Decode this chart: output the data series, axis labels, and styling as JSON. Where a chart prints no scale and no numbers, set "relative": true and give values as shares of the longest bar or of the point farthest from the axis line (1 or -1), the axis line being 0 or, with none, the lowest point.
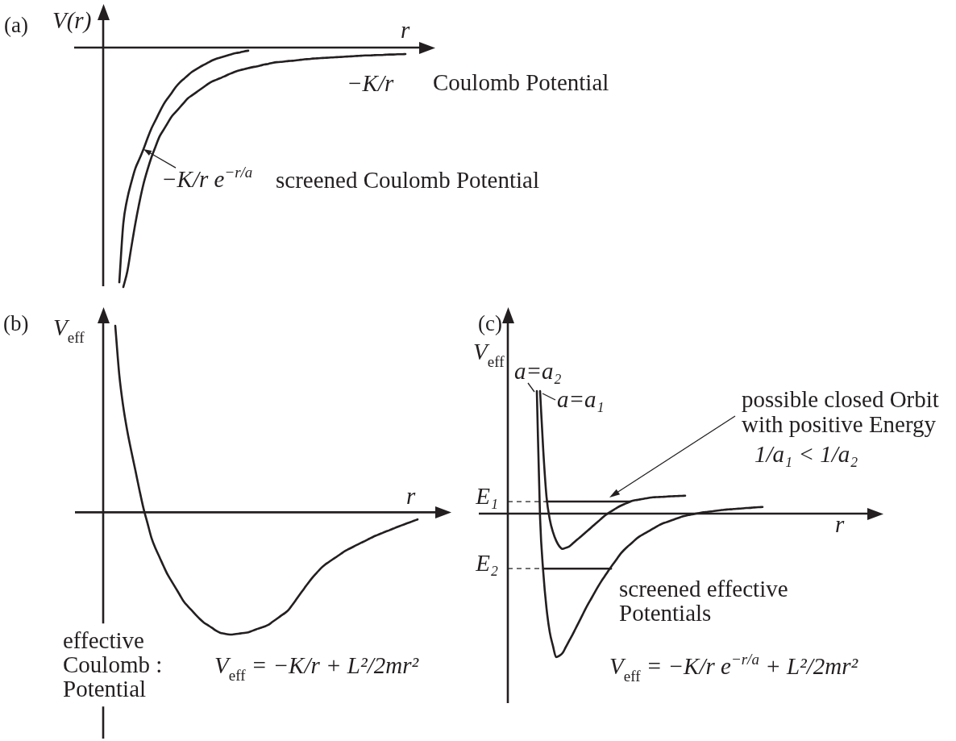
{
  "chart_data": [
    {
      "type": "line",
      "title": "(a)",
      "ylabel": "V(r)",
      "xlabel": "r",
      "relative": true,
      "categories": [
        null,
        null,
        null,
        null,
        null,
        null,
        null,
        null,
        null,
        null,
        null,
        null,
        null,
        null,
        null,
        null,
        null,
        null,
        null,
        null,
        null,
        null,
        null,
        null,
        null,
        null,
        null,
        null,
        null,
        null,
        null,
        null,
        null,
        null,
        null,
        null,
        null,
        null,
        null,
        null,
        null,
        null,
        null,
        null,
        null,
        null,
        null,
        null,
        null,
        null,
        null,
        null,
        null,
        null,
        null,
        null,
        null,
        null,
        null,
        null,
        null,
        null,
        null,
        null,
        null,
        null,
        null,
        null,
        null,
        null,
        null,
        null,
        null,
        null,
        null,
        null,
        null,
        null,
        null,
        null,
        null,
        null,
        null
      ],
      "series": [
        {
          "name": "−K/r e$^{−r/a}$",
          "color": "#231f20",
          "values": [
            null,
            null,
            null,
            null,
            -0.98,
            -0.734,
            -0.63,
            -0.562,
            -0.504,
            -0.465,
            -0.424,
            -0.379,
            -0.337,
            -0.303,
            -0.269,
            -0.237,
            -0.212,
            -0.189,
            -0.165,
            -0.146,
            -0.131,
            -0.116,
            -0.102,
            -0.091,
            -0.081,
            -0.072,
            -0.063,
            -0.054,
            -0.047,
            -0.042,
            -0.037,
            -0.032,
            -0.027,
            -0.023,
            -0.02,
            -0.016,
            -0.013,
            null,
            null,
            null,
            null,
            null,
            null,
            null,
            null,
            null,
            null,
            null,
            null,
            null,
            null,
            null,
            null,
            null,
            null,
            null,
            null,
            null,
            null,
            null,
            null,
            null,
            null,
            null,
            null,
            null,
            null,
            null,
            null,
            null,
            null,
            null,
            null,
            null,
            null,
            null,
            null,
            null,
            null,
            null,
            null,
            null,
            null
          ]
        },
        {
          "name": "−K/r",
          "color": "#231f20",
          "values": [
            null,
            null,
            null,
            null,
            null,
            -1,
            -0.934,
            -0.832,
            -0.733,
            -0.646,
            -0.57,
            -0.51,
            -0.457,
            -0.413,
            -0.371,
            -0.343,
            -0.315,
            -0.288,
            -0.269,
            -0.25,
            -0.231,
            -0.212,
            -0.2,
            -0.188,
            -0.176,
            -0.164,
            -0.152,
            -0.142,
            -0.135,
            -0.128,
            -0.121,
            -0.113,
            -0.106,
            -0.099,
            -0.094,
            -0.09,
            -0.086,
            -0.082,
            -0.079,
            -0.075,
            -0.071,
            -0.068,
            -0.064,
            -0.061,
            -0.06,
            -0.058,
            -0.056,
            -0.055,
            -0.053,
            -0.051,
            -0.049,
            -0.048,
            -0.046,
            -0.045,
            -0.044,
            -0.043,
            -0.042,
            -0.041,
            -0.04,
            -0.039,
            -0.038,
            -0.037,
            -0.036,
            -0.035,
            -0.034,
            -0.033,
            -0.033,
            -0.032,
            -0.031,
            -0.031,
            -0.03,
            -0.029,
            -0.029,
            -0.028,
            -0.028,
            -0.027,
            null,
            null,
            null,
            null,
            null,
            null,
            null
          ]
        }
      ],
      "annotations": [
        "screened Coulomb Potential",
        "Coulomb Potential"
      ]
    },
    {
      "type": "line",
      "title": "(b)",
      "ylabel": "V$_{eff}$",
      "xlabel": "r",
      "relative": true,
      "categories": [
        null,
        null,
        null,
        null,
        null,
        null,
        null,
        null,
        null,
        null,
        null,
        null,
        null,
        null,
        null,
        null,
        null,
        null,
        null,
        null,
        null,
        null,
        null,
        null,
        null,
        null,
        null,
        null,
        null,
        null,
        null,
        null,
        null,
        null,
        null,
        null,
        null,
        null,
        null,
        null,
        null,
        null,
        null,
        null,
        null,
        null,
        null,
        null,
        null,
        null,
        null,
        null,
        null,
        null,
        null,
        null,
        null,
        null,
        null,
        null,
        null,
        null,
        null,
        null,
        null,
        null,
        null,
        null,
        null,
        null,
        null,
        null,
        null,
        null,
        null,
        null,
        null,
        null,
        null
      ],
      "series": [
        {
          "color": "#231f20",
          "values": [
            null,
            null,
            null,
            1,
            0.736,
            0.564,
            0.434,
            0.326,
            0.224,
            0.12,
            0.022,
            -0.058,
            -0.138,
            -0.194,
            -0.241,
            -0.289,
            -0.334,
            -0.37,
            -0.406,
            -0.442,
            -0.478,
            -0.503,
            -0.526,
            -0.55,
            -0.572,
            -0.591,
            -0.605,
            -0.619,
            -0.634,
            -0.645,
            -0.65,
            -0.654,
            -0.655,
            -0.652,
            -0.649,
            -0.646,
            -0.643,
            -0.635,
            -0.627,
            -0.619,
            -0.612,
            -0.603,
            -0.587,
            -0.572,
            -0.556,
            -0.541,
            -0.523,
            -0.494,
            -0.464,
            -0.434,
            -0.404,
            -0.375,
            -0.348,
            -0.324,
            -0.3,
            -0.281,
            -0.266,
            -0.251,
            -0.237,
            -0.222,
            -0.207,
            -0.196,
            -0.185,
            -0.174,
            -0.163,
            -0.153,
            -0.142,
            -0.131,
            -0.122,
            -0.113,
            -0.104,
            -0.096,
            -0.087,
            -0.078,
            -0.07,
            -0.062,
            -0.054,
            -0.046,
            -0.038
          ]
        }
      ],
      "annotations": [
        "effective\nCoulomb :\nPotential",
        "V$_{eff}$ = −K/r + L²/2mr²"
      ]
    },
    {
      "type": "line",
      "title": "(c)",
      "ylabel": "V$_{eff}$",
      "xlabel": "r",
      "relative": true,
      "categories": [
        null,
        null,
        null,
        null,
        null,
        null,
        null,
        null,
        null,
        null,
        null,
        null,
        null,
        null,
        null,
        null,
        null,
        null,
        null,
        null,
        null,
        null,
        null,
        null,
        null,
        null,
        null,
        null,
        null,
        null,
        null,
        null,
        null,
        null,
        null,
        null,
        null,
        null,
        null,
        null,
        null,
        null,
        null,
        null,
        null,
        null,
        null,
        null,
        null,
        null,
        null,
        null,
        null,
        null,
        null,
        null,
        null,
        null,
        null,
        null,
        null,
        null,
        null,
        null,
        null,
        null,
        null,
        null,
        null,
        null,
        null,
        null,
        null,
        null,
        null,
        null,
        null,
        null,
        null,
        null,
        null,
        null,
        null,
        null,
        null,
        null,
        null,
        null,
        null,
        null,
        null,
        null,
        null,
        null,
        null,
        null,
        null,
        null,
        null,
        null,
        null,
        null,
        null,
        null,
        null,
        null,
        null,
        null,
        null,
        null,
        null,
        null,
        null,
        null,
        null,
        null,
        null
      ],
      "series": [
        {
          "name": "a=a₂",
          "color": "#231f20",
          "values": [
            null,
            null,
            null,
            null,
            null,
            null,
            null,
            null,
            null,
            0.854,
            -0.028,
            -0.41,
            -0.66,
            -0.825,
            -0.922,
            -1,
            -0.99,
            -0.971,
            -0.929,
            -0.887,
            -0.846,
            -0.802,
            -0.758,
            -0.713,
            -0.668,
            -0.626,
            -0.587,
            -0.547,
            -0.508,
            -0.471,
            -0.438,
            -0.404,
            -0.372,
            -0.341,
            -0.31,
            -0.279,
            -0.254,
            -0.233,
            -0.213,
            -0.193,
            -0.173,
            -0.157,
            -0.144,
            -0.131,
            -0.118,
            -0.105,
            -0.092,
            -0.079,
            -0.069,
            -0.061,
            -0.053,
            -0.045,
            -0.037,
            -0.029,
            -0.021,
            -0.015,
            -0.01,
            -0.006,
            -0.001,
            0.003,
            0.007,
            0.01,
            0.013,
            0.015,
            0.018,
            0.021,
            0.024,
            0.027,
            0.029,
            0.03,
            0.032,
            0.034,
            0.035,
            0.037,
            0.039,
            0.04,
            0.042,
            0.044,
            0.045,
            0.046,
            null,
            null,
            null,
            null,
            null,
            null,
            null,
            null,
            null,
            null,
            null,
            null,
            null,
            null,
            null,
            null,
            null,
            null,
            null,
            null,
            null,
            null,
            null,
            null,
            null,
            null,
            null,
            null,
            null,
            null,
            null,
            null,
            null,
            null,
            null,
            null,
            null
          ]
        },
        {
          "name": "a=a₁",
          "color": "#231f20",
          "values": [
            null,
            null,
            null,
            null,
            null,
            null,
            null,
            null,
            null,
            null,
            0.854,
            0.437,
            0.118,
            -0.039,
            -0.129,
            -0.189,
            -0.228,
            -0.246,
            -0.238,
            -0.23,
            -0.211,
            -0.191,
            -0.172,
            -0.153,
            -0.133,
            -0.114,
            -0.094,
            -0.074,
            -0.055,
            -0.035,
            -0.015,
            0.001,
            0.015,
            0.029,
            0.043,
            0.055,
            0.065,
            0.074,
            0.084,
            0.091,
            0.095,
            0.099,
            0.103,
            0.107,
            0.111,
            0.114,
            0.115,
            0.116,
            0.117,
            0.118,
            0.12,
            0.121,
            0.122,
            0.123,
            0.124,
            0.125,
            null,
            null,
            null,
            null,
            null,
            null,
            null,
            null,
            null,
            null,
            null,
            null,
            null,
            null,
            null,
            null,
            null,
            null,
            null,
            null,
            null,
            null,
            null,
            null,
            null,
            null,
            null,
            null,
            null,
            null,
            null,
            null,
            null,
            null,
            null,
            null,
            null,
            null,
            null,
            null,
            null,
            null,
            null,
            null,
            null,
            null,
            null,
            null,
            null,
            null,
            null,
            null,
            null,
            null,
            null,
            null,
            null,
            null,
            null,
            null,
            null
          ]
        },
        {
          "name": "E₁",
          "color": "#231f20",
          "line_style": "dashed",
          "values": [
            0.084,
            0.084,
            0.084,
            0.084,
            0.084,
            0.084,
            0.084,
            0.084,
            0.084,
            0.084,
            0.084,
            0.084,
            0.084,
            null,
            null,
            null,
            null,
            null,
            null,
            null,
            null,
            null,
            null,
            null,
            null,
            null,
            null,
            null,
            null,
            null,
            null,
            null,
            null,
            null,
            null,
            null,
            null,
            null,
            null,
            null,
            null,
            null,
            null,
            null,
            null,
            null,
            null,
            null,
            null,
            null,
            null,
            null,
            null,
            null,
            null,
            null,
            null,
            null,
            null,
            null,
            null,
            null,
            null,
            null,
            null,
            null,
            null,
            null,
            null,
            null,
            null,
            null,
            null,
            null,
            null,
            null,
            null,
            null,
            null,
            null,
            null,
            null,
            null,
            null,
            null,
            null,
            null,
            null,
            null,
            null,
            null,
            null,
            null,
            null,
            null,
            null,
            null,
            null,
            null,
            null,
            null,
            null,
            null,
            null,
            null,
            null,
            null,
            null,
            null,
            null,
            null,
            null,
            null,
            null,
            null,
            null,
            null
          ]
        },
        {
          "color": "#231f20",
          "values": [
            null,
            null,
            null,
            null,
            null,
            null,
            null,
            null,
            null,
            null,
            null,
            null,
            0.084,
            0.084,
            0.084,
            0.084,
            0.084,
            0.084,
            0.084,
            0.084,
            0.084,
            0.084,
            0.084,
            0.084,
            0.084,
            0.084,
            0.084,
            0.084,
            0.084,
            0.084,
            0.084,
            0.084,
            0.084,
            0.084,
            0.084,
            0.084,
            0.084,
            0.084,
            0.084,
            null,
            null,
            null,
            null,
            null,
            null,
            null,
            null,
            null,
            null,
            null,
            null,
            null,
            null,
            null,
            null,
            null,
            null,
            null,
            null,
            null,
            null,
            null,
            null,
            null,
            null,
            null,
            null,
            null,
            null,
            null,
            null,
            null,
            null,
            null,
            null,
            null,
            null,
            null,
            null,
            null,
            null,
            null,
            null,
            null,
            null,
            null,
            null,
            null,
            null,
            null,
            null,
            null,
            null,
            null,
            null,
            null,
            null,
            null,
            null,
            null,
            null,
            null,
            null,
            null,
            null,
            null,
            null,
            null,
            null,
            null,
            null,
            null,
            null,
            null,
            null,
            null,
            null
          ]
        },
        {
          "name": "E₂",
          "color": "#231f20",
          "line_style": "dashed",
          "values": [
            -0.383,
            -0.383,
            -0.383,
            -0.383,
            -0.383,
            -0.383,
            -0.383,
            -0.383,
            -0.383,
            -0.383,
            -0.383,
            -0.383,
            null,
            null,
            null,
            null,
            null,
            null,
            null,
            null,
            null,
            null,
            null,
            null,
            null,
            null,
            null,
            null,
            null,
            null,
            null,
            null,
            null,
            null,
            null,
            null,
            null,
            null,
            null,
            null,
            null,
            null,
            null,
            null,
            null,
            null,
            null,
            null,
            null,
            null,
            null,
            null,
            null,
            null,
            null,
            null,
            null,
            null,
            null,
            null,
            null,
            null,
            null,
            null,
            null,
            null,
            null,
            null,
            null,
            null,
            null,
            null,
            null,
            null,
            null,
            null,
            null,
            null,
            null,
            null,
            null,
            null,
            null,
            null,
            null,
            null,
            null,
            null,
            null,
            null,
            null,
            null,
            null,
            null,
            null,
            null,
            null,
            null,
            null,
            null,
            null,
            null,
            null,
            null,
            null,
            null,
            null,
            null,
            null,
            null,
            null,
            null,
            null,
            null,
            null,
            null,
            null
          ]
        },
        {
          "color": "#231f20",
          "values": [
            null,
            null,
            null,
            null,
            null,
            null,
            null,
            null,
            null,
            null,
            null,
            -0.383,
            -0.383,
            -0.383,
            -0.383,
            -0.383,
            -0.383,
            -0.383,
            -0.383,
            -0.383,
            -0.383,
            -0.383,
            -0.383,
            -0.383,
            -0.383,
            -0.383,
            -0.383,
            -0.383,
            -0.383,
            -0.383,
            -0.383,
            -0.383,
            -0.383,
            null,
            null,
            null,
            null,
            null,
            null,
            null,
            null,
            null,
            null,
            null,
            null,
            null,
            null,
            null,
            null,
            null,
            null,
            null,
            null,
            null,
            null,
            null,
            null,
            null,
            null,
            null,
            null,
            null,
            null,
            null,
            null,
            null,
            null,
            null,
            null,
            null,
            null,
            null,
            null,
            null,
            null,
            null,
            null,
            null,
            null,
            null,
            null,
            null,
            null,
            null,
            null,
            null,
            null,
            null,
            null,
            null,
            null,
            null,
            null,
            null,
            null,
            null,
            null,
            null,
            null,
            null,
            null,
            null,
            null,
            null,
            null,
            null,
            null,
            null,
            null,
            null,
            null,
            null,
            null,
            null,
            null,
            null,
            null
          ]
        }
      ],
      "annotations": [
        "possible closed Orbit\nwith positive Energy",
        "1/a₁ < 1/a₂",
        "screened effective\nPotentials",
        "V$_{eff}$ = −K/r e$^{−r/a}$ + L²/2mr²"
      ]
    }
  ]
}
